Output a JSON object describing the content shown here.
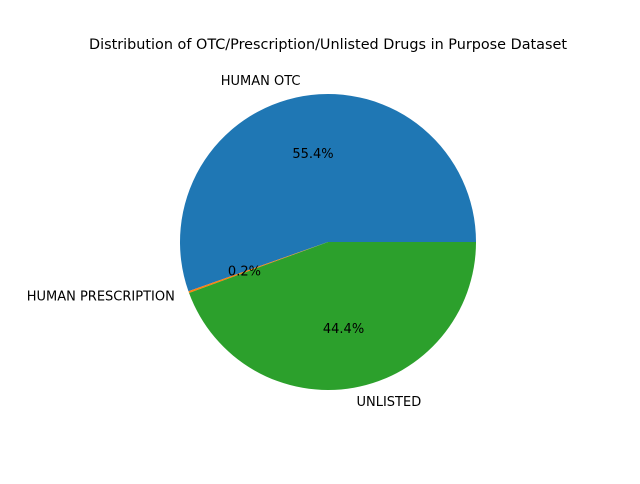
{
  "chart_data": {
    "type": "pie",
    "title": "Distribution of OTC/Prescription/Unlisted Drugs in Purpose Dataset",
    "labels": [
      "HUMAN OTC",
      "HUMAN PRESCRIPTION",
      "UNLISTED"
    ],
    "values": [
      55.4,
      0.2,
      44.4
    ],
    "value_labels": [
      "55.4%",
      "0.2%",
      "44.4%"
    ],
    "colors": [
      "#1f77b4",
      "#ff7f0e",
      "#2ca02c"
    ],
    "start_angle": 0,
    "direction": "counterclockwise",
    "legend": "none"
  }
}
